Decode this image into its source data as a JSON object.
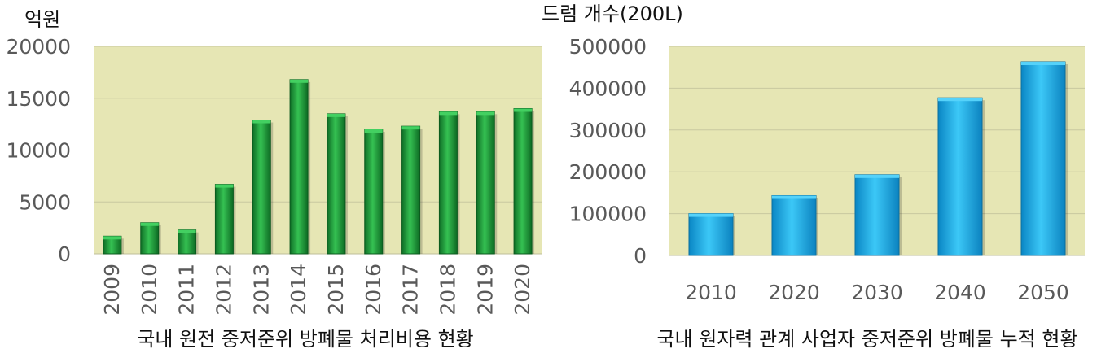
{
  "chart_data": [
    {
      "type": "bar",
      "unit_label": "억원",
      "title": "국내 원전 중저준위 방폐물 처리비용 현황",
      "categories": [
        "2009",
        "2010",
        "2011",
        "2012",
        "2013",
        "2014",
        "2015",
        "2016",
        "2017",
        "2018",
        "2019",
        "2020"
      ],
      "values": [
        1700,
        3000,
        2300,
        6700,
        12900,
        16800,
        13500,
        12000,
        12300,
        13700,
        13700,
        14000
      ],
      "y_ticks": [
        0,
        5000,
        10000,
        15000,
        20000
      ],
      "ylim": [
        0,
        20000
      ],
      "bar_color": "#1e9e3a",
      "plot_bg": "#e6e6b4",
      "grid": true
    },
    {
      "type": "bar",
      "unit_label": "드럼 개수(200L)",
      "title": "국내 원자력 관계 사업자 중저준위 방폐물 누적 현황",
      "categories": [
        "2010",
        "2020",
        "2030",
        "2040",
        "2050"
      ],
      "values": [
        100000,
        143000,
        193000,
        377000,
        463000
      ],
      "y_ticks": [
        0,
        100000,
        200000,
        300000,
        400000,
        500000
      ],
      "ylim": [
        0,
        500000
      ],
      "bar_color": "#1ab0ea",
      "plot_bg": "#e6e6b4",
      "grid": true
    }
  ]
}
